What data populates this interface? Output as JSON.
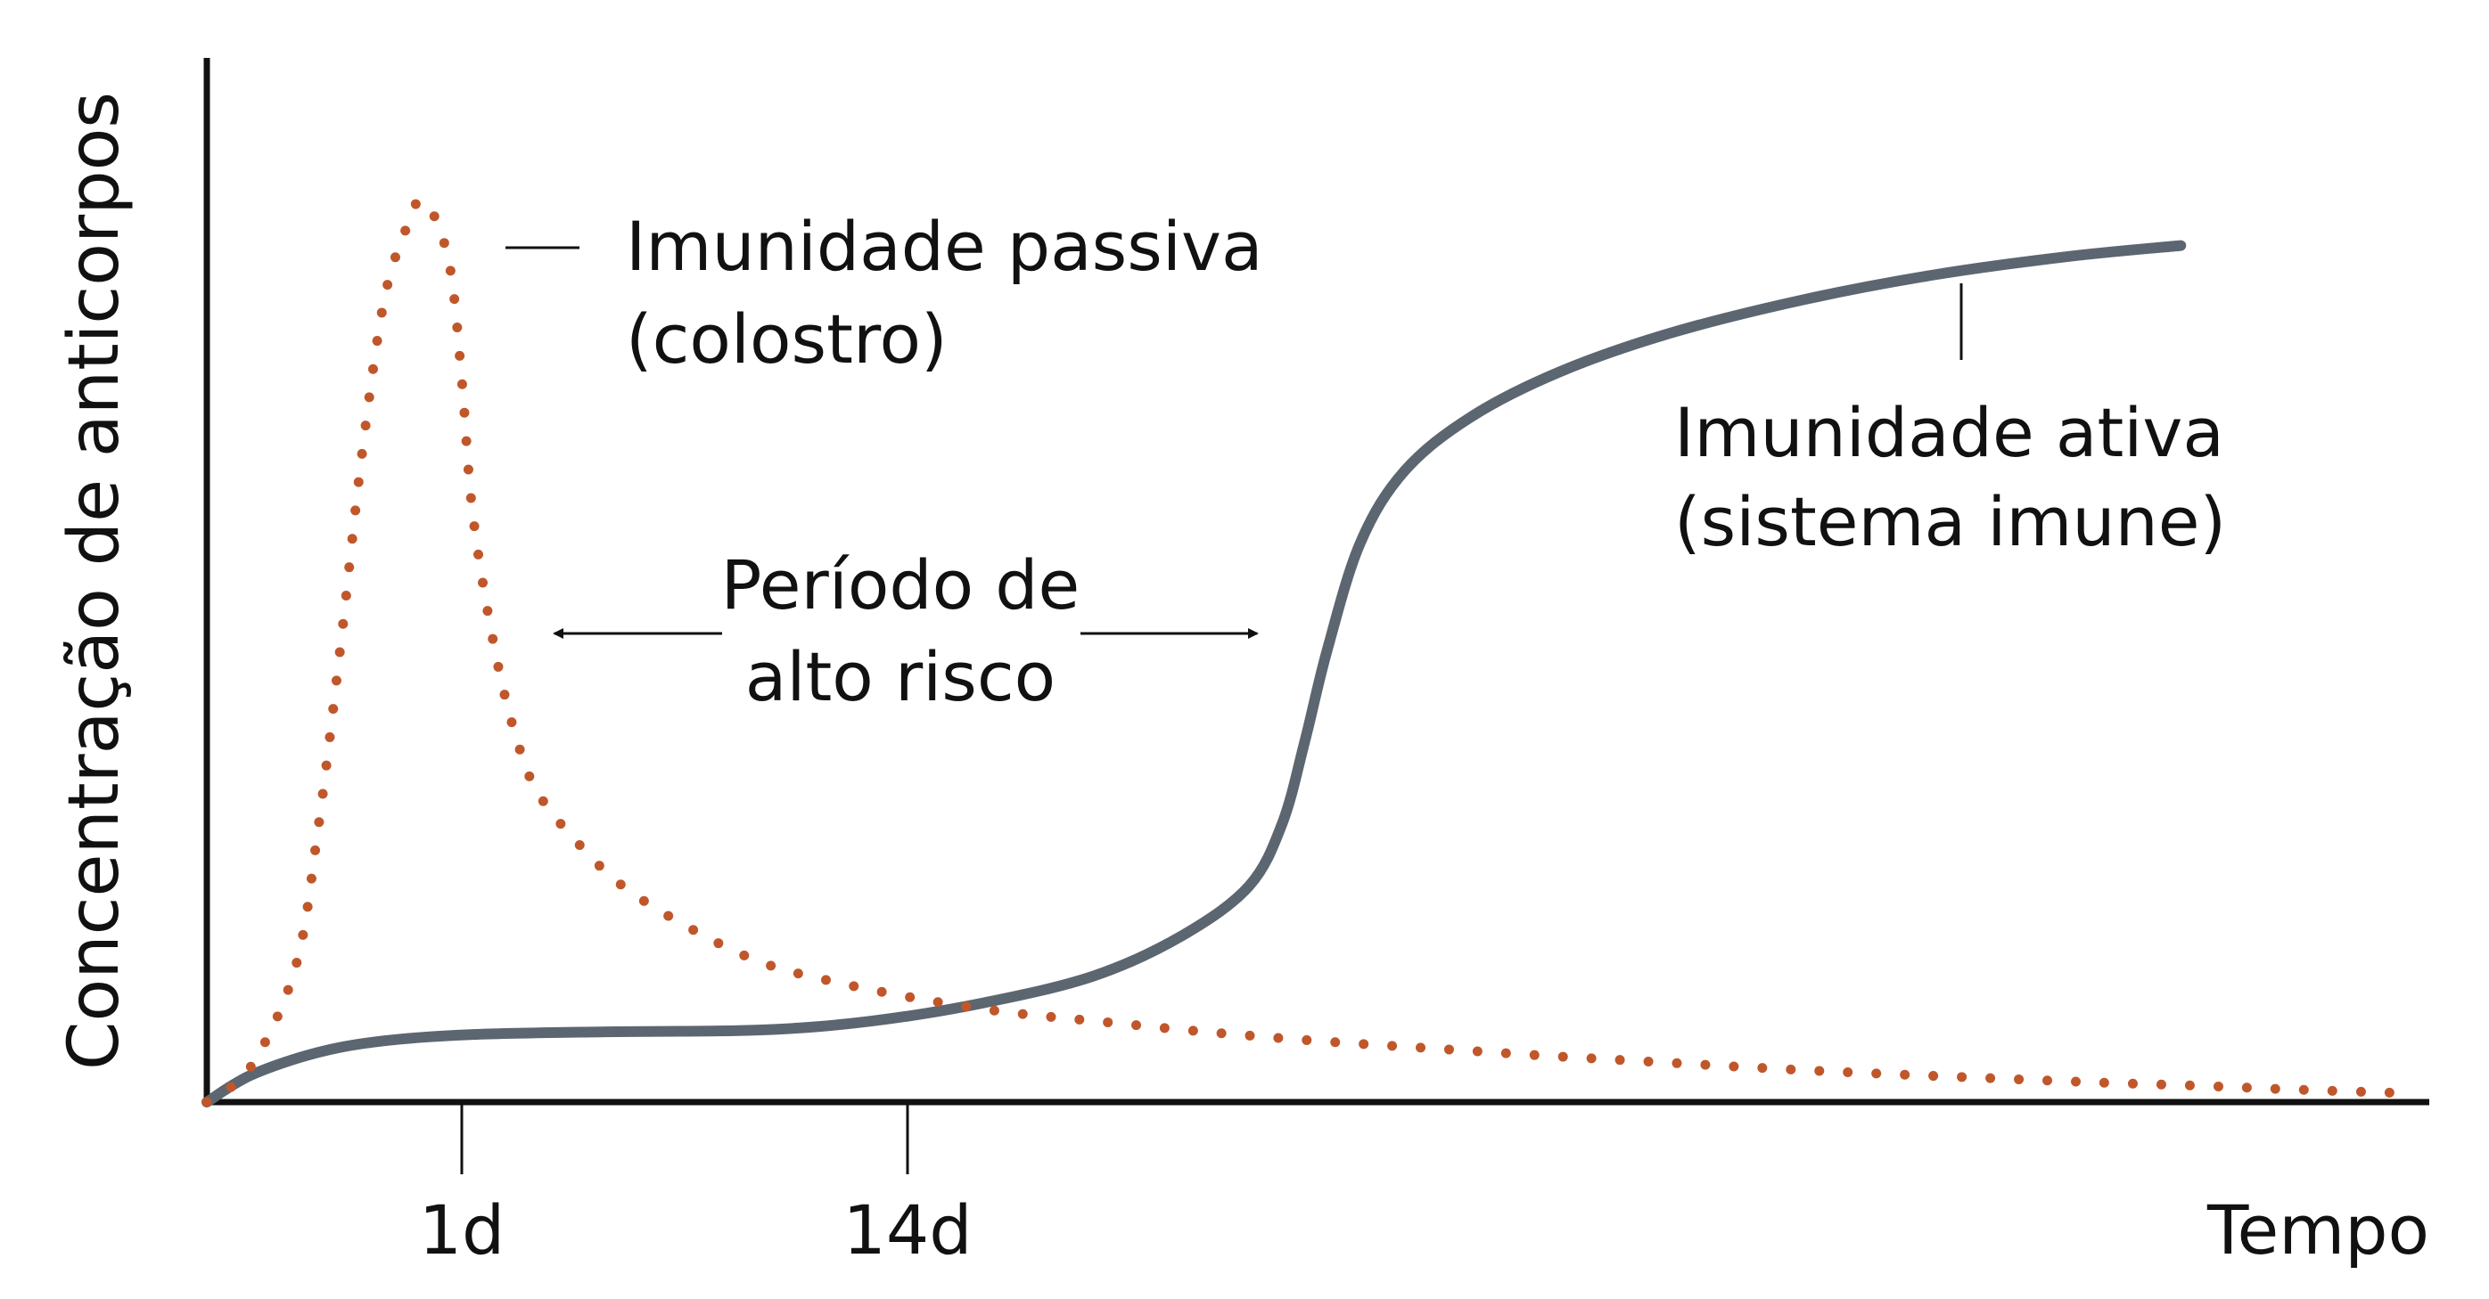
{
  "chart_data": {
    "type": "line",
    "ylabel": "Concentração de anticorpos",
    "xlabel": "Tempo",
    "x_ticks": [
      "1d",
      "14d"
    ],
    "grid": false,
    "x_range": [
      0,
      100
    ],
    "y_range": [
      0,
      100
    ],
    "series": [
      {
        "key": "passive",
        "name": "Imunidade passiva (colostro)",
        "color": "#c0572b",
        "style": "dotted",
        "points": [
          [
            0,
            0
          ],
          [
            2,
            4
          ],
          [
            4,
            15
          ],
          [
            5,
            30
          ],
          [
            6,
            50
          ],
          [
            7,
            72
          ],
          [
            8,
            89
          ],
          [
            9,
            97
          ],
          [
            9.6,
            100
          ],
          [
            10.3,
            98
          ],
          [
            11,
            92
          ],
          [
            11.5,
            80
          ],
          [
            12,
            65
          ],
          [
            13,
            50
          ],
          [
            14,
            40
          ],
          [
            15,
            34
          ],
          [
            17,
            28
          ],
          [
            19,
            23.5
          ],
          [
            22,
            19
          ],
          [
            25,
            15.5
          ],
          [
            28,
            13.5
          ],
          [
            32,
            11.5
          ],
          [
            36,
            10
          ],
          [
            40,
            9
          ],
          [
            45,
            7.8
          ],
          [
            50,
            6.8
          ],
          [
            55,
            6
          ],
          [
            60,
            5.2
          ],
          [
            65,
            4.5
          ],
          [
            70,
            3.8
          ],
          [
            75,
            3.2
          ],
          [
            80,
            2.7
          ],
          [
            85,
            2.2
          ],
          [
            90,
            1.8
          ],
          [
            94,
            1.4
          ],
          [
            99,
            1
          ]
        ]
      },
      {
        "key": "active",
        "name": "Imunidade ativa (sistema imune)",
        "color": "#5c6670",
        "style": "solid",
        "points": [
          [
            0,
            0
          ],
          [
            2,
            3
          ],
          [
            5,
            5.5
          ],
          [
            8,
            6.8
          ],
          [
            12,
            7.5
          ],
          [
            18,
            7.8
          ],
          [
            25,
            8
          ],
          [
            30,
            9
          ],
          [
            35,
            11
          ],
          [
            40,
            14
          ],
          [
            44,
            18.5
          ],
          [
            47,
            24
          ],
          [
            48.5,
            31
          ],
          [
            49.5,
            40
          ],
          [
            50.5,
            50
          ],
          [
            52,
            62
          ],
          [
            54,
            70
          ],
          [
            57,
            76
          ],
          [
            61,
            81
          ],
          [
            66,
            85.3
          ],
          [
            72,
            89
          ],
          [
            78,
            91.8
          ],
          [
            84,
            93.8
          ],
          [
            89,
            95
          ]
        ]
      }
    ],
    "annotations": {
      "passive_line1": "Imunidade passiva",
      "passive_line2": "(colostro)",
      "active_line1": "Imunidade ativa",
      "active_line2": "(sistema imune)",
      "risk_line1": "Período de",
      "risk_line2": "alto risco"
    }
  }
}
